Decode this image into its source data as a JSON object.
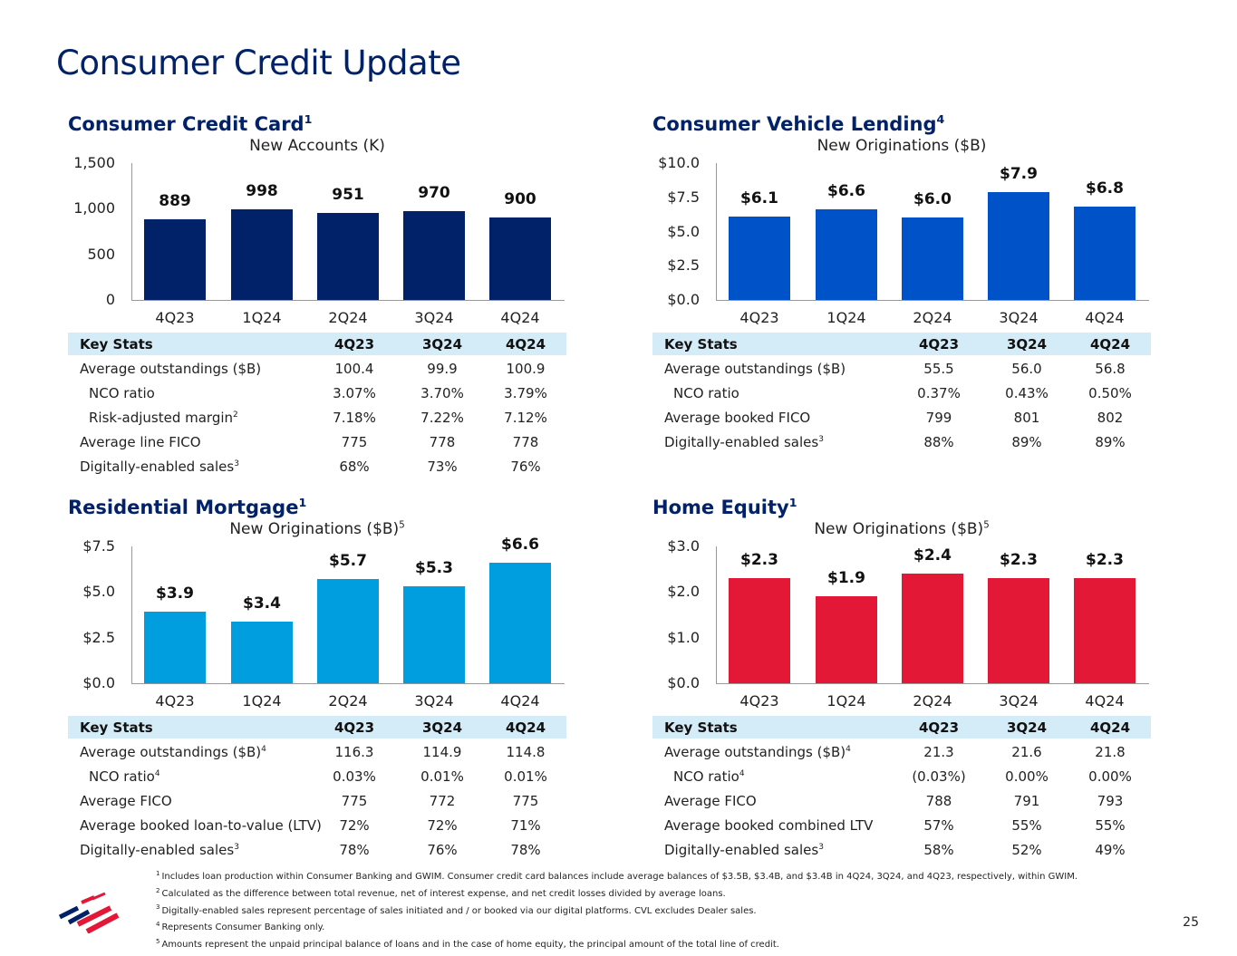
{
  "title": "Consumer Credit Update",
  "page_number": "25",
  "key_stats_header": {
    "label": "Key Stats",
    "periods": [
      "4Q23",
      "3Q24",
      "4Q24"
    ]
  },
  "chart_data": [
    {
      "type": "bar",
      "title": "Consumer Credit Card",
      "title_sup": "1",
      "subtitle": "New Accounts (K)",
      "subtitle_sup": "",
      "categories": [
        "4Q23",
        "1Q24",
        "2Q24",
        "3Q24",
        "4Q24"
      ],
      "values": [
        889,
        998,
        951,
        970,
        900
      ],
      "value_labels": [
        "889",
        "998",
        "951",
        "970",
        "900"
      ],
      "yticks": [
        "0",
        "500",
        "1,000",
        "1,500"
      ],
      "ylim": [
        0,
        1500
      ],
      "color": "#012169",
      "stats": [
        {
          "label": "Average outstandings ($B)",
          "sup": "",
          "indent": false,
          "values": [
            "100.4",
            "99.9",
            "100.9"
          ]
        },
        {
          "label": "NCO ratio",
          "sup": "",
          "indent": true,
          "values": [
            "3.07%",
            "3.70%",
            "3.79%"
          ]
        },
        {
          "label": "Risk-adjusted margin",
          "sup": "2",
          "indent": true,
          "values": [
            "7.18%",
            "7.22%",
            "7.12%"
          ]
        },
        {
          "label": "Average line FICO",
          "sup": "",
          "indent": false,
          "values": [
            "775",
            "778",
            "778"
          ]
        },
        {
          "label": "Digitally-enabled sales",
          "sup": "3",
          "indent": false,
          "values": [
            "68%",
            "73%",
            "76%"
          ]
        }
      ]
    },
    {
      "type": "bar",
      "title": "Consumer Vehicle Lending",
      "title_sup": "4",
      "subtitle": "New Originations ($B)",
      "subtitle_sup": "",
      "categories": [
        "4Q23",
        "1Q24",
        "2Q24",
        "3Q24",
        "4Q24"
      ],
      "values": [
        6.1,
        6.6,
        6.0,
        7.9,
        6.8
      ],
      "value_labels": [
        "$6.1",
        "$6.6",
        "$6.0",
        "$7.9",
        "$6.8"
      ],
      "yticks": [
        "$0.0",
        "$2.5",
        "$5.0",
        "$7.5",
        "$10.0"
      ],
      "ylim": [
        0,
        10
      ],
      "color": "#0052c8",
      "stats": [
        {
          "label": "Average outstandings ($B)",
          "sup": "",
          "indent": false,
          "values": [
            "55.5",
            "56.0",
            "56.8"
          ]
        },
        {
          "label": "NCO ratio",
          "sup": "",
          "indent": true,
          "values": [
            "0.37%",
            "0.43%",
            "0.50%"
          ]
        },
        {
          "label": "Average booked FICO",
          "sup": "",
          "indent": false,
          "values": [
            "799",
            "801",
            "802"
          ]
        },
        {
          "label": "Digitally-enabled sales",
          "sup": "3",
          "indent": false,
          "values": [
            "88%",
            "89%",
            "89%"
          ]
        }
      ]
    },
    {
      "type": "bar",
      "title": "Residential Mortgage",
      "title_sup": "1",
      "subtitle": "New Originations ($B)",
      "subtitle_sup": "5",
      "categories": [
        "4Q23",
        "1Q24",
        "2Q24",
        "3Q24",
        "4Q24"
      ],
      "values": [
        3.9,
        3.4,
        5.7,
        5.3,
        6.6
      ],
      "value_labels": [
        "$3.9",
        "$3.4",
        "$5.7",
        "$5.3",
        "$6.6"
      ],
      "yticks": [
        "$0.0",
        "$2.5",
        "$5.0",
        "$7.5"
      ],
      "ylim": [
        0,
        7.5
      ],
      "color": "#009ddf",
      "stats": [
        {
          "label": "Average outstandings ($B)",
          "sup": "4",
          "indent": false,
          "values": [
            "116.3",
            "114.9",
            "114.8"
          ]
        },
        {
          "label": "NCO ratio",
          "sup": "4",
          "indent": true,
          "values": [
            "0.03%",
            "0.01%",
            "0.01%"
          ]
        },
        {
          "label": "Average FICO",
          "sup": "",
          "indent": false,
          "values": [
            "775",
            "772",
            "775"
          ]
        },
        {
          "label": "Average booked loan-to-value (LTV)",
          "sup": "",
          "indent": false,
          "values": [
            "72%",
            "72%",
            "71%"
          ]
        },
        {
          "label": "Digitally-enabled sales",
          "sup": "3",
          "indent": false,
          "values": [
            "78%",
            "76%",
            "78%"
          ]
        }
      ]
    },
    {
      "type": "bar",
      "title": "Home Equity",
      "title_sup": "1",
      "subtitle": "New Originations ($B)",
      "subtitle_sup": "5",
      "categories": [
        "4Q23",
        "1Q24",
        "2Q24",
        "3Q24",
        "4Q24"
      ],
      "values": [
        2.3,
        1.9,
        2.4,
        2.3,
        2.3
      ],
      "value_labels": [
        "$2.3",
        "$1.9",
        "$2.4",
        "$2.3",
        "$2.3"
      ],
      "yticks": [
        "$0.0",
        "$1.0",
        "$2.0",
        "$3.0"
      ],
      "ylim": [
        0,
        3
      ],
      "color": "#e31837",
      "stats": [
        {
          "label": "Average outstandings ($B)",
          "sup": "4",
          "indent": false,
          "values": [
            "21.3",
            "21.6",
            "21.8"
          ]
        },
        {
          "label": "NCO ratio",
          "sup": "4",
          "indent": true,
          "values": [
            "(0.03%)",
            "0.00%",
            "0.00%"
          ]
        },
        {
          "label": "Average FICO",
          "sup": "",
          "indent": false,
          "values": [
            "788",
            "791",
            "793"
          ]
        },
        {
          "label": "Average booked combined LTV",
          "sup": "",
          "indent": false,
          "values": [
            "57%",
            "55%",
            "55%"
          ]
        },
        {
          "label": "Digitally-enabled sales",
          "sup": "3",
          "indent": false,
          "values": [
            "58%",
            "52%",
            "49%"
          ]
        }
      ]
    }
  ],
  "footnotes": [
    {
      "num": "1",
      "text": "Includes loan production within Consumer Banking and GWIM. Consumer credit card balances include average balances of $3.5B, $3.4B, and $3.4B in 4Q24, 3Q24, and 4Q23, respectively, within GWIM."
    },
    {
      "num": "2",
      "text": "Calculated as the difference between total revenue, net of interest expense, and net credit losses divided by average loans."
    },
    {
      "num": "3",
      "text": "Digitally-enabled sales represent percentage of sales initiated and / or booked via our digital platforms. CVL excludes Dealer sales."
    },
    {
      "num": "4",
      "text": "Represents Consumer Banking only."
    },
    {
      "num": "5",
      "text": "Amounts represent the unpaid principal balance of loans and in the case of home equity, the principal amount of the total line of credit."
    }
  ]
}
